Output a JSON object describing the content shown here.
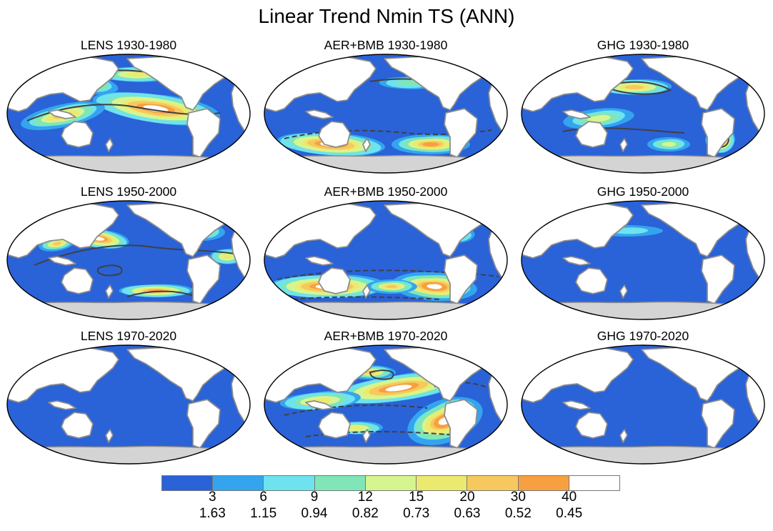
{
  "figure": {
    "title": "Linear Trend Nmin TS (ANN)",
    "panels": [
      {
        "title": "LENS 1930-1980",
        "variant": 0
      },
      {
        "title": "AER+BMB 1930-1980",
        "variant": 1
      },
      {
        "title": "GHG 1930-1980",
        "variant": 2
      },
      {
        "title": "LENS 1950-2000",
        "variant": 3
      },
      {
        "title": "AER+BMB 1950-2000",
        "variant": 4
      },
      {
        "title": "GHG 1950-2000",
        "variant": 5
      },
      {
        "title": "LENS 1970-2020",
        "variant": 6
      },
      {
        "title": "AER+BMB 1970-2020",
        "variant": 7
      },
      {
        "title": "GHG 1970-2020",
        "variant": 8
      }
    ]
  },
  "colorbar": {
    "colors": [
      "#2a62d8",
      "#33a5ee",
      "#6ee3ee",
      "#80e6b8",
      "#d6f590",
      "#ecea6e",
      "#f6c85e",
      "#f7a040",
      "#ffffff"
    ],
    "labels_top": [
      "3",
      "6",
      "9",
      "12",
      "15",
      "20",
      "30",
      "40"
    ],
    "labels_bottom": [
      "1.63",
      "1.15",
      "0.94",
      "0.82",
      "0.73",
      "0.63",
      "0.52",
      "0.45"
    ]
  },
  "map_colors": {
    "ocean": "#2a62d8",
    "land": "#ffffff",
    "antarctica": "#d4d4d4",
    "coast": "#8c8c8c",
    "contour": "#404040"
  }
}
